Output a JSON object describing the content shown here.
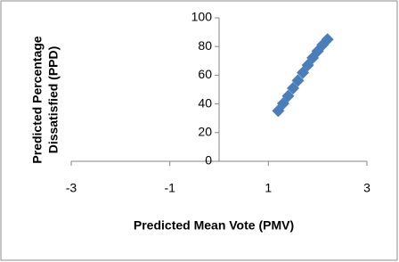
{
  "chart_data": {
    "type": "scatter",
    "xlabel": "Predicted Mean Vote (PMV)",
    "ylabel": [
      "Predicted Percentage",
      "Dissatisfied (PPD)"
    ],
    "x": [
      1.2,
      1.3,
      1.4,
      1.5,
      1.6,
      1.7,
      1.8,
      1.9,
      2.0,
      2.1,
      2.2
    ],
    "values": [
      35.2,
      40.3,
      45.5,
      50.9,
      56.3,
      61.8,
      67.0,
      72.1,
      76.8,
      81.1,
      84.9
    ],
    "color": "#4a7ebb",
    "xlim": [
      -3,
      3
    ],
    "xticks": [
      -3,
      -1,
      1,
      3
    ],
    "ylim": [
      0,
      100
    ],
    "yticks": [
      0,
      20,
      40,
      60,
      80,
      100
    ],
    "grid": false
  }
}
